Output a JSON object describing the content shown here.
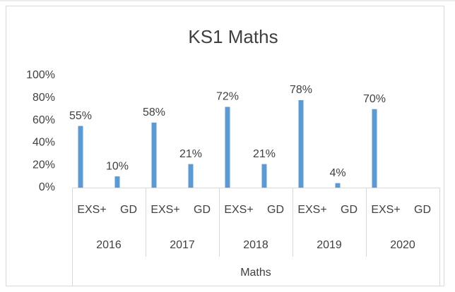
{
  "chart_data": {
    "type": "bar",
    "title": "KS1 Maths",
    "categories": [
      "EXS+",
      "GD",
      "EXS+",
      "GD",
      "EXS+",
      "GD",
      "EXS+",
      "GD",
      "EXS+",
      "GD"
    ],
    "category_groups": [
      "2016",
      "2017",
      "2018",
      "2019",
      "2020"
    ],
    "category_supergroup": "Maths",
    "values": [
      55,
      10,
      58,
      21,
      72,
      21,
      78,
      4,
      70,
      null
    ],
    "value_labels": [
      "55%",
      "10%",
      "58%",
      "21%",
      "72%",
      "21%",
      "78%",
      "4%",
      "70%",
      null
    ],
    "color": "#5b9bd5",
    "ylim": [
      0,
      100
    ],
    "yticks": [
      {
        "value": 0,
        "label": "0%"
      },
      {
        "value": 20,
        "label": "20%"
      },
      {
        "value": 40,
        "label": "40%"
      },
      {
        "value": 60,
        "label": "60%"
      },
      {
        "value": 80,
        "label": "80%"
      },
      {
        "value": 100,
        "label": "100%"
      }
    ],
    "grid": false
  }
}
